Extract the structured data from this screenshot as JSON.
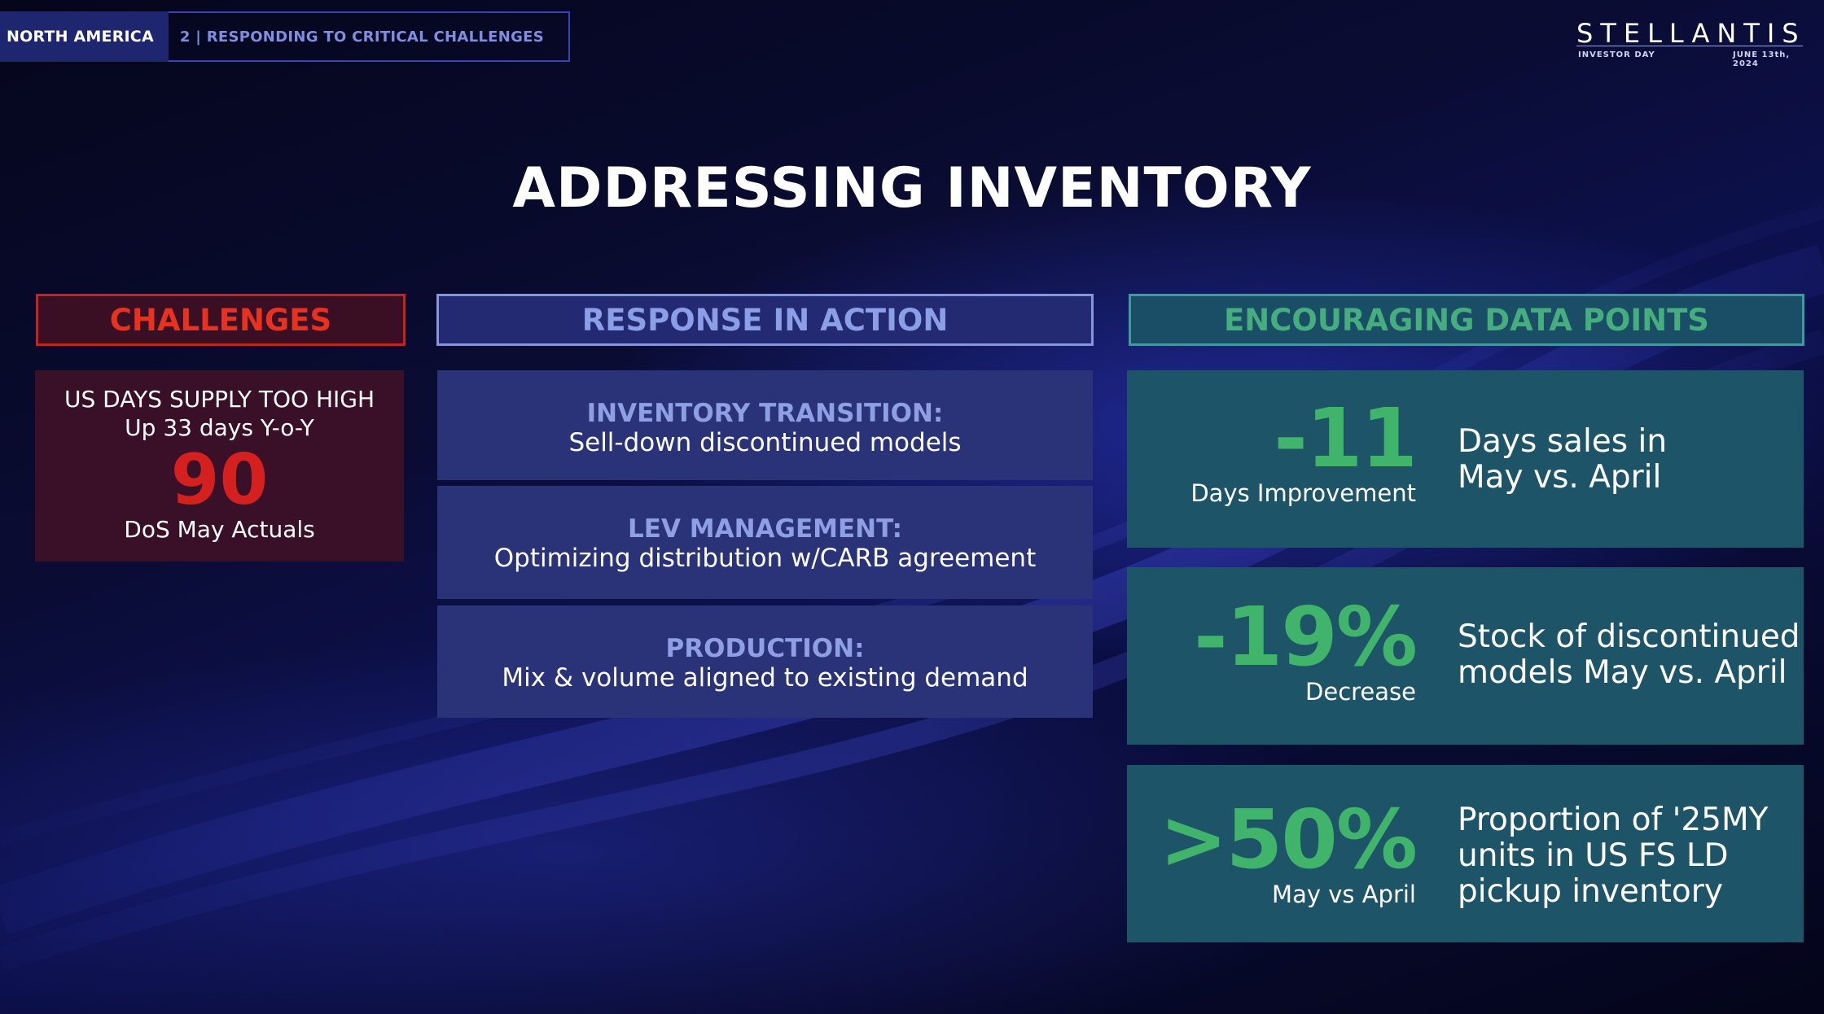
{
  "header": {
    "section": "NORTH AMERICA",
    "chapter": "2 | RESPONDING TO CRITICAL CHALLENGES"
  },
  "logo": {
    "wordmark": "STELLANTIS",
    "event": "INVESTOR DAY",
    "date": "JUNE 13th, 2024"
  },
  "title": "ADDRESSING INVENTORY",
  "columns": {
    "challenges": "CHALLENGES",
    "response": "RESPONSE IN ACTION",
    "data": "ENCOURAGING DATA POINTS"
  },
  "challenge": {
    "line1": "US DAYS SUPPLY TOO HIGH",
    "line2": "Up 33 days Y-o-Y",
    "value": "90",
    "caption": "DoS May Actuals"
  },
  "responses": [
    {
      "heading": "INVENTORY TRANSITION:",
      "body": "Sell-down discontinued models"
    },
    {
      "heading": "LEV MANAGEMENT:",
      "body": "Optimizing distribution w/CARB agreement"
    },
    {
      "heading": "PRODUCTION:",
      "body": "Mix & volume aligned to existing demand"
    }
  ],
  "data_points": [
    {
      "value": "-11",
      "sub": "Days Improvement",
      "desc_line1": "Days sales in",
      "desc_line2": "May vs. April",
      "desc_line3": ""
    },
    {
      "value": "-19%",
      "sub": "Decrease",
      "desc_line1": "Stock of discontinued",
      "desc_line2": "models May vs. April",
      "desc_line3": ""
    },
    {
      "value": ">50%",
      "sub": "May vs April",
      "desc_line1": "Proportion of '25MY",
      "desc_line2": "units in US FS LD",
      "desc_line3": "pickup inventory"
    }
  ],
  "colors": {
    "challenge_red": "#d4201e",
    "response_blue": "#8f9fe4",
    "data_green": "#3fb46a"
  }
}
